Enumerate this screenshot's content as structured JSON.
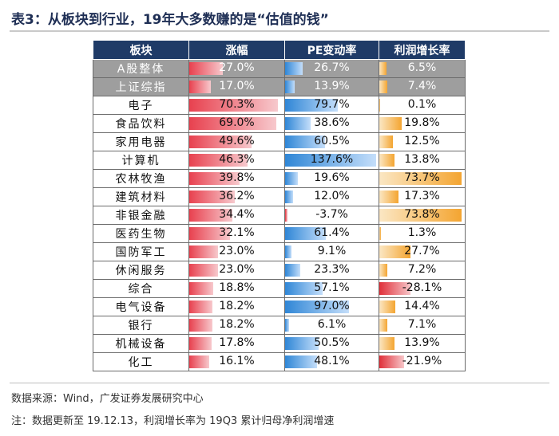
{
  "title": "表3：从板块到行业，19年大多数赚的是“估值的钱”",
  "headers": [
    "板块",
    "涨幅",
    "PE变动率",
    "利润增长率"
  ],
  "rows": [
    {
      "name": "A股整体",
      "gain": "27.0%",
      "gain_v": 27.0,
      "pe": "26.7%",
      "pe_v": 26.7,
      "profit": "6.5%",
      "profit_v": 6.5,
      "shaded": true
    },
    {
      "name": "上证综指",
      "gain": "17.0%",
      "gain_v": 17.0,
      "pe": "13.9%",
      "pe_v": 13.9,
      "profit": "7.4%",
      "profit_v": 7.4,
      "shaded": true
    },
    {
      "name": "电子",
      "gain": "70.3%",
      "gain_v": 70.3,
      "pe": "79.7%",
      "pe_v": 79.7,
      "profit": "0.1%",
      "profit_v": 0.1,
      "shaded": false
    },
    {
      "name": "食品饮料",
      "gain": "69.0%",
      "gain_v": 69.0,
      "pe": "38.6%",
      "pe_v": 38.6,
      "profit": "19.8%",
      "profit_v": 19.8,
      "shaded": false
    },
    {
      "name": "家用电器",
      "gain": "49.6%",
      "gain_v": 49.6,
      "pe": "60.5%",
      "pe_v": 60.5,
      "profit": "12.5%",
      "profit_v": 12.5,
      "shaded": false
    },
    {
      "name": "计算机",
      "gain": "46.3%",
      "gain_v": 46.3,
      "pe": "137.6%",
      "pe_v": 137.6,
      "profit": "13.8%",
      "profit_v": 13.8,
      "shaded": false
    },
    {
      "name": "农林牧渔",
      "gain": "39.8%",
      "gain_v": 39.8,
      "pe": "19.6%",
      "pe_v": 19.6,
      "profit": "73.7%",
      "profit_v": 73.7,
      "shaded": false
    },
    {
      "name": "建筑材料",
      "gain": "36.2%",
      "gain_v": 36.2,
      "pe": "12.0%",
      "pe_v": 12.0,
      "profit": "17.3%",
      "profit_v": 17.3,
      "shaded": false
    },
    {
      "name": "非银金融",
      "gain": "34.4%",
      "gain_v": 34.4,
      "pe": "-3.7%",
      "pe_v": -3.7,
      "profit": "73.8%",
      "profit_v": 73.8,
      "shaded": false
    },
    {
      "name": "医药生物",
      "gain": "32.1%",
      "gain_v": 32.1,
      "pe": "61.4%",
      "pe_v": 61.4,
      "profit": "1.3%",
      "profit_v": 1.3,
      "shaded": false
    },
    {
      "name": "国防军工",
      "gain": "23.0%",
      "gain_v": 23.0,
      "pe": "9.1%",
      "pe_v": 9.1,
      "profit": "27.7%",
      "profit_v": 27.7,
      "shaded": false
    },
    {
      "name": "休闲服务",
      "gain": "23.0%",
      "gain_v": 23.0,
      "pe": "23.3%",
      "pe_v": 23.3,
      "profit": "7.2%",
      "profit_v": 7.2,
      "shaded": false
    },
    {
      "name": "综合",
      "gain": "18.8%",
      "gain_v": 18.8,
      "pe": "57.1%",
      "pe_v": 57.1,
      "profit": "-28.1%",
      "profit_v": -28.1,
      "shaded": false
    },
    {
      "name": "电气设备",
      "gain": "18.2%",
      "gain_v": 18.2,
      "pe": "97.0%",
      "pe_v": 97.0,
      "profit": "14.4%",
      "profit_v": 14.4,
      "shaded": false
    },
    {
      "name": "银行",
      "gain": "18.2%",
      "gain_v": 18.2,
      "pe": "6.1%",
      "pe_v": 6.1,
      "profit": "7.1%",
      "profit_v": 7.1,
      "shaded": false
    },
    {
      "name": "机械设备",
      "gain": "17.8%",
      "gain_v": 17.8,
      "pe": "50.5%",
      "pe_v": 50.5,
      "profit": "13.9%",
      "profit_v": 13.9,
      "shaded": false
    },
    {
      "name": "化工",
      "gain": "16.1%",
      "gain_v": 16.1,
      "pe": "48.1%",
      "pe_v": 48.1,
      "profit": "-21.9%",
      "profit_v": -21.9,
      "shaded": false
    }
  ],
  "source": "数据来源：Wind，广发证券发展研究中心",
  "note": "注：数据更新至 19.12.13，利润增长率为 19Q3 累计归母净利润增速",
  "colors": {
    "header": "#1f3b67",
    "gain_bar": "#e8414f",
    "pe_bar": "#2f86d6",
    "profit_bar": "#f4a531",
    "shaded_row": "#9e9e9e"
  }
}
